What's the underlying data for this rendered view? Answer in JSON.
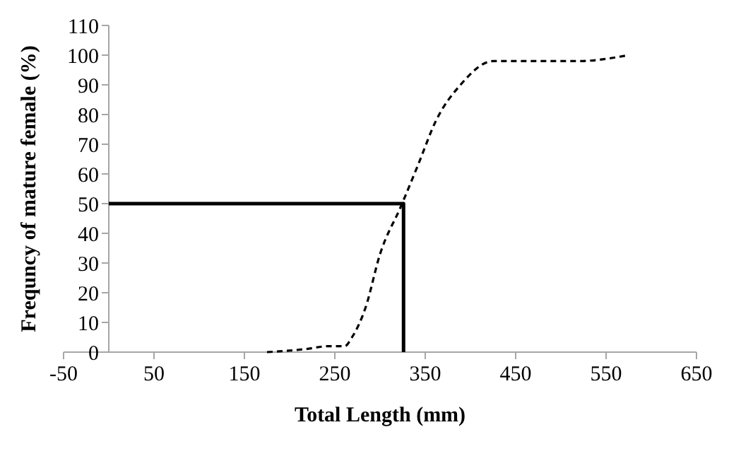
{
  "chart_data": {
    "type": "line",
    "xlabel": "Total Length (mm)",
    "ylabel": "Frequncy of mature female (%)",
    "xlim": [
      -50,
      650
    ],
    "xticks": [
      -50,
      50,
      150,
      250,
      350,
      450,
      550,
      650
    ],
    "ylim": [
      0,
      110
    ],
    "yticks": [
      0,
      10,
      20,
      30,
      40,
      50,
      60,
      70,
      80,
      90,
      100,
      110
    ],
    "grid": false,
    "series": [
      {
        "color": "#000000",
        "line_style": "dashed",
        "x": [
          175,
          217,
          243,
          261,
          269,
          284,
          300,
          323,
          342,
          362,
          389,
          425,
          435,
          519,
          575
        ],
        "values": [
          0,
          1,
          2,
          2,
          5,
          15,
          33,
          49,
          63,
          78,
          90,
          98,
          98,
          98,
          100
        ]
      },
      {
        "color": "#000000",
        "line_style": "solid",
        "x": [
          0,
          326,
          326
        ],
        "values": [
          50,
          50,
          0
        ]
      }
    ]
  }
}
